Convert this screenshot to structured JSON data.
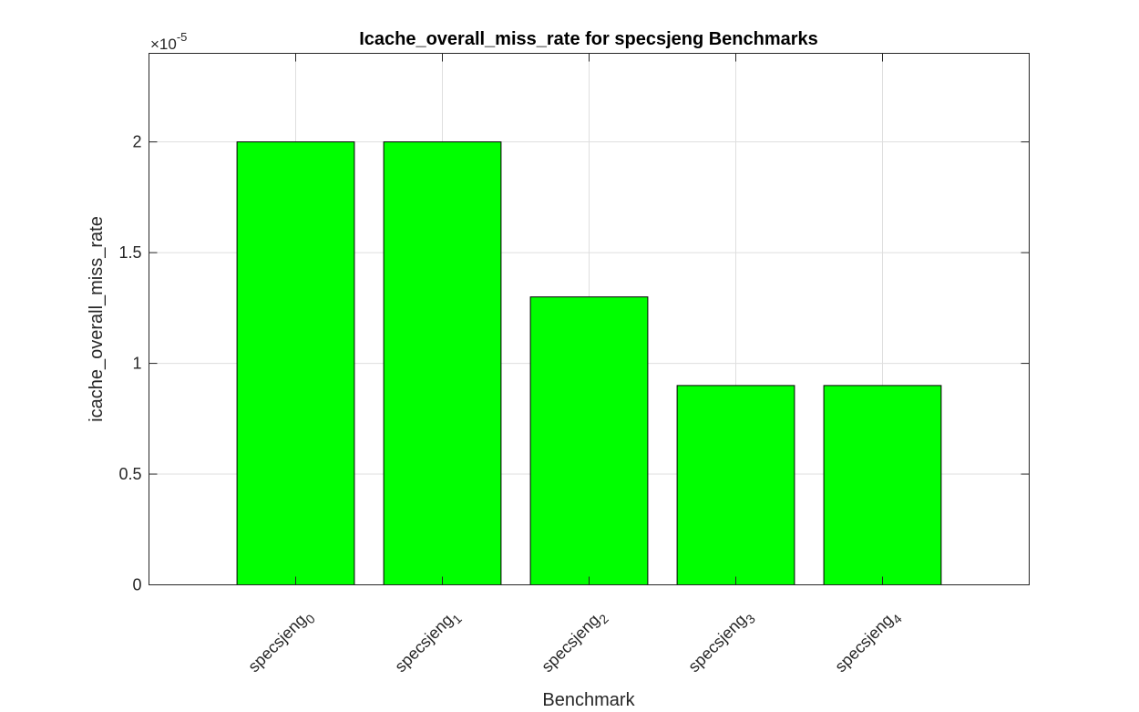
{
  "chart_data": {
    "type": "bar",
    "title": "Icache_overall_miss_rate for specsjeng Benchmarks",
    "xlabel": "Benchmark",
    "ylabel": "icache_overall_miss_rate",
    "y_exponent_label": {
      "base": "×10",
      "exponent": "-5"
    },
    "categories": [
      {
        "base": "specsjeng",
        "sub": "0"
      },
      {
        "base": "specsjeng",
        "sub": "1"
      },
      {
        "base": "specsjeng",
        "sub": "2"
      },
      {
        "base": "specsjeng",
        "sub": "3"
      },
      {
        "base": "specsjeng",
        "sub": "4"
      }
    ],
    "values": [
      2.0,
      2.0,
      1.3,
      0.9,
      0.9
    ],
    "value_scale": "1e-5",
    "ylim": [
      0,
      2.4
    ],
    "yticks": [
      0,
      0.5,
      1,
      1.5,
      2
    ],
    "ytick_labels": [
      "0",
      "0.5",
      "1",
      "1.5",
      "2"
    ],
    "xlim": [
      0,
      6
    ],
    "grid": true,
    "bar_color": "#00ff00"
  }
}
